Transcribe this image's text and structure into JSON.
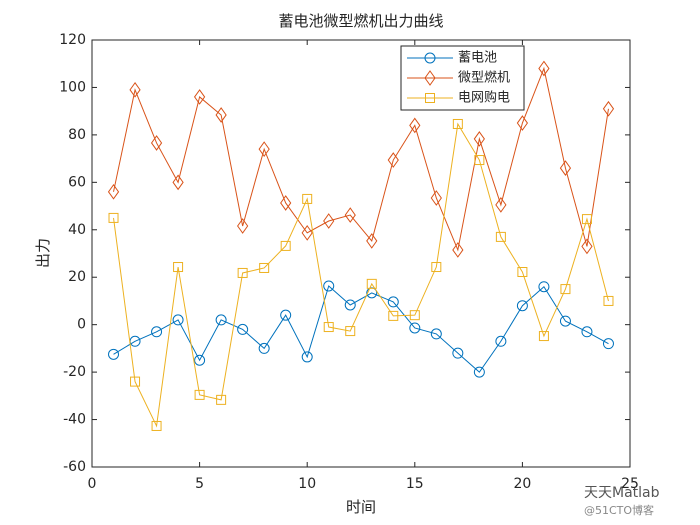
{
  "chart_data": {
    "type": "line",
    "title": "蓄电池微型燃机出力曲线",
    "x_label": "时间",
    "y_label": "出力",
    "x": [
      1,
      2,
      3,
      4,
      5,
      6,
      7,
      8,
      9,
      10,
      11,
      12,
      13,
      14,
      15,
      16,
      17,
      18,
      19,
      20,
      21,
      22,
      23,
      24
    ],
    "series": [
      {
        "name": "蓄电池",
        "color": "#0072bd",
        "marker": "circle",
        "values": [
          -12.5,
          -7,
          -3,
          2,
          -15,
          2,
          -2,
          -10,
          4,
          -13.6,
          16.3,
          8.3,
          13.4,
          9.6,
          -1.4,
          -3.9,
          -12,
          -20,
          -7,
          8,
          16,
          1.5,
          -3,
          -8
        ]
      },
      {
        "name": "微型燃机",
        "color": "#d95319",
        "marker": "diamond",
        "values": [
          56,
          99,
          76.6,
          60,
          96,
          88.4,
          41.6,
          74,
          51.3,
          38.7,
          43.7,
          46.2,
          35.3,
          69.4,
          84,
          53.4,
          31.5,
          78.3,
          50.5,
          85,
          108,
          66,
          33,
          91
        ]
      },
      {
        "name": "电网购电",
        "color": "#edb120",
        "marker": "square",
        "values": [
          45,
          -24,
          -42.7,
          24.3,
          -29.6,
          -31.7,
          21.8,
          23.9,
          33.2,
          53,
          -1,
          -2.7,
          17.2,
          3.7,
          4,
          24.3,
          84.6,
          69.4,
          37,
          22.2,
          -4.8,
          15,
          44.5,
          10
        ]
      }
    ],
    "xlim": [
      0,
      25
    ],
    "xticks": [
      0,
      5,
      10,
      15,
      20,
      25
    ],
    "ylim": [
      -60,
      120
    ],
    "yticks": [
      -60,
      -40,
      -20,
      0,
      20,
      40,
      60,
      80,
      100,
      120
    ],
    "legend": "top-right",
    "annotations": [
      "天天Matlab",
      "@51CTO博客"
    ]
  }
}
